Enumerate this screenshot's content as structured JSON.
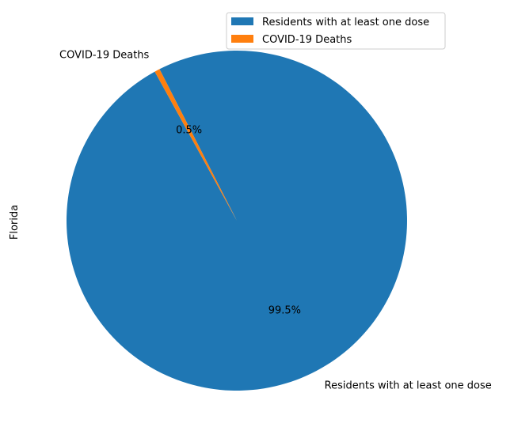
{
  "chart_data": {
    "type": "pie",
    "ylabel": "Florida",
    "slices": [
      {
        "label": "Residents with at least one dose",
        "value": 99.5,
        "pct_label": "99.5%",
        "color": "#1f77b4"
      },
      {
        "label": "COVID-19 Deaths",
        "value": 0.5,
        "pct_label": "0.5%",
        "color": "#ff7f0e"
      }
    ],
    "legend": {
      "placement": "top-right",
      "entries": [
        "Residents with at least one dose",
        "COVID-19 Deaths"
      ]
    }
  }
}
